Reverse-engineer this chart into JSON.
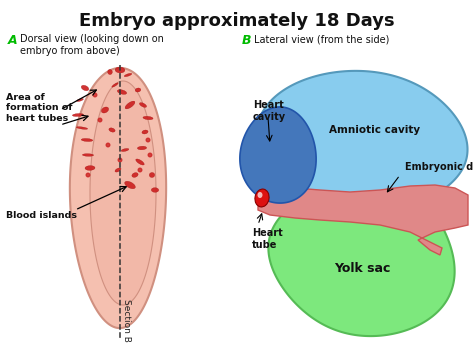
{
  "title": "Embryo approximately 18 Days",
  "title_fontsize": 13,
  "title_fontweight": "bold",
  "label_A": "A",
  "label_B": "B",
  "label_color": "#00bb00",
  "subtitle_A": "Dorsal view (looking down on\nembryo from above)",
  "subtitle_B": "Lateral view (from the side)",
  "bg_color": "#ffffff",
  "embryo_color": "#f5c0b0",
  "embryo_outline_color": "#d09080",
  "embryo_inner_color": "#f0b0a0",
  "blood_island_color": "#cc2222",
  "dashed_line_color": "#333333",
  "yolk_sac_color": "#7de87d",
  "yolk_sac_edge": "#55bb55",
  "amniotic_cavity_color": "#88ccee",
  "amniotic_edge": "#5599bb",
  "embryonic_disc_color": "#e08888",
  "embryonic_disc_edge": "#cc5555",
  "heart_cavity_color": "#4477bb",
  "heart_cavity_edge": "#2255aa",
  "heart_tube_color": "#dd1111",
  "annotation_color": "#000000",
  "section_b_color": "#222222"
}
